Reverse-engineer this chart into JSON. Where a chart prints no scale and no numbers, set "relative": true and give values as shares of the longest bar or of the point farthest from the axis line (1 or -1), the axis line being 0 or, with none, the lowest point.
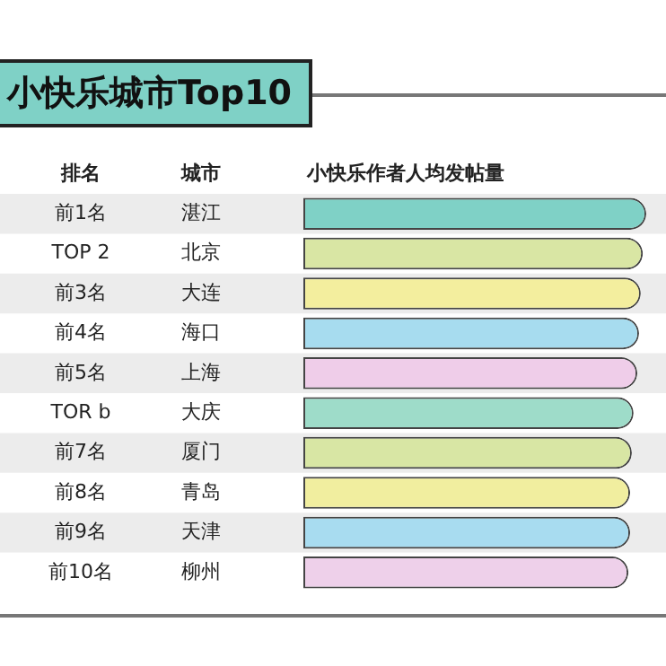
{
  "chart_data": {
    "type": "bar",
    "orientation": "horizontal",
    "relative": true,
    "title": "小快乐城市Top10",
    "xlabel": "小快乐作者人均发帖量",
    "ylabel": "城市",
    "categories": [
      "湛江",
      "北京",
      "大连",
      "海口",
      "上海",
      "大庆",
      "厦门",
      "青岛",
      "天津",
      "柳州"
    ],
    "values": [
      1,
      0.99,
      0.984,
      0.979,
      0.974,
      0.963,
      0.958,
      0.953,
      0.953,
      0.948
    ],
    "colors": [
      "#7fd1c6",
      "#d9e6a4",
      "#f3ee9e",
      "#a7dcef",
      "#efcde9",
      "#9edcc9",
      "#d8e6a4",
      "#f1ee9f",
      "#a8dcf0",
      "#eed0ea"
    ],
    "annotations": [
      "排名",
      "前1名",
      "TOP 2",
      "前3名",
      "前4名",
      "前5名",
      "TOR b",
      "前7名",
      "前8名",
      "前9名",
      "前10名"
    ]
  }
}
